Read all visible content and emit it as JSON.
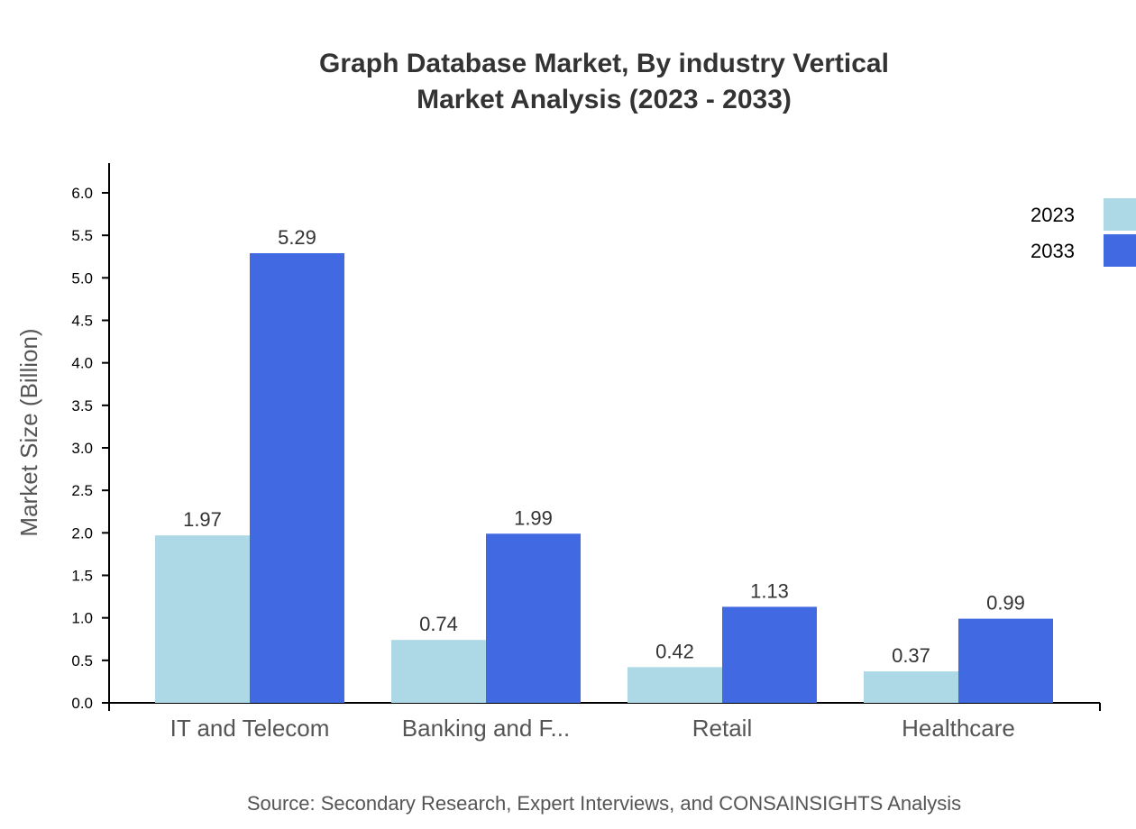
{
  "chart_data": {
    "type": "bar",
    "title": "Graph Database Market, By industry Vertical",
    "subtitle": "Market Analysis (2023 - 2033)",
    "xlabel": "",
    "ylabel": "Market Size (Billion)",
    "ylim": [
      0,
      6.35
    ],
    "yticks": [
      "0.0",
      "0.5",
      "1.0",
      "1.5",
      "2.0",
      "2.5",
      "3.0",
      "3.5",
      "4.0",
      "4.5",
      "5.0",
      "5.5",
      "6.0"
    ],
    "grid": false,
    "legend_position": "top-right",
    "categories": [
      "IT and Telecom",
      "Banking and F...",
      "Retail",
      "Healthcare"
    ],
    "series": [
      {
        "name": "2023",
        "color": "#add8e6",
        "values": [
          1.97,
          0.74,
          0.42,
          0.37
        ]
      },
      {
        "name": "2033",
        "color": "#4169e1",
        "values": [
          5.29,
          1.99,
          1.13,
          0.99
        ]
      }
    ],
    "source": "Source: Secondary Research, Expert Interviews, and CONSAINSIGHTS Analysis"
  }
}
